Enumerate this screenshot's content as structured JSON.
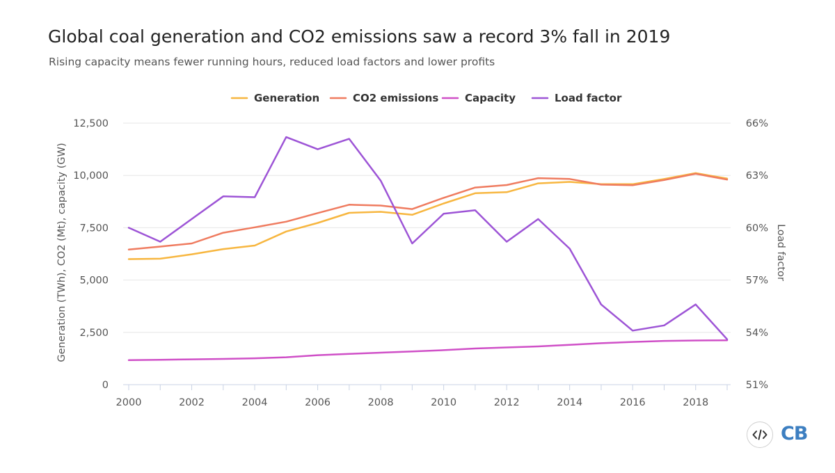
{
  "title": "Global coal generation and CO2 emissions saw a record 3% fall in 2019",
  "subtitle": "Rising capacity means fewer running hours, reduced load factors and lower profits",
  "logo_text": "CB",
  "embed_icon": "code-icon",
  "chart_data": {
    "type": "line",
    "title": "Global coal generation and CO2 emissions saw a record 3% fall in 2019",
    "subtitle": "Rising capacity means fewer running hours, reduced load factors and lower profits",
    "x": [
      2000,
      2001,
      2002,
      2003,
      2004,
      2005,
      2006,
      2007,
      2008,
      2009,
      2010,
      2011,
      2012,
      2013,
      2014,
      2015,
      2016,
      2017,
      2018,
      2019
    ],
    "x_ticks": [
      "2000",
      "2002",
      "2004",
      "2006",
      "2008",
      "2010",
      "2012",
      "2014",
      "2016",
      "2018"
    ],
    "ylabel": "Generation (TWh), CO2 (Mt), capacity (GW)",
    "ylim": [
      0,
      12500
    ],
    "y_ticks": [
      "0",
      "2,500",
      "5,000",
      "7,500",
      "10,000",
      "12,500"
    ],
    "y2label": "Load factor",
    "y2lim": [
      51,
      66
    ],
    "y2_ticks": [
      "51%",
      "54%",
      "57%",
      "60%",
      "63%",
      "66%"
    ],
    "grid": true,
    "legend_position": "top-center",
    "series": [
      {
        "name": "Generation",
        "axis": "left",
        "color": "#f7b63f",
        "values": [
          6000,
          6020,
          6230,
          6480,
          6650,
          7320,
          7730,
          8210,
          8260,
          8120,
          8660,
          9150,
          9200,
          9620,
          9690,
          9580,
          9580,
          9830,
          10110,
          9850
        ]
      },
      {
        "name": "CO2 emissions",
        "axis": "left",
        "color": "#ef7b5f",
        "values": [
          6460,
          6600,
          6750,
          7260,
          7520,
          7790,
          8200,
          8600,
          8560,
          8390,
          8930,
          9420,
          9540,
          9870,
          9830,
          9560,
          9530,
          9780,
          10080,
          9800
        ]
      },
      {
        "name": "Capacity",
        "axis": "left",
        "color": "#cf4fc7",
        "values": [
          1170,
          1190,
          1210,
          1230,
          1260,
          1310,
          1410,
          1470,
          1530,
          1590,
          1650,
          1730,
          1780,
          1830,
          1900,
          1980,
          2040,
          2090,
          2110,
          2120
        ]
      },
      {
        "name": "Load factor",
        "axis": "right",
        "color": "#9d54d6",
        "values": [
          60.0,
          59.2,
          60.5,
          61.8,
          61.75,
          65.2,
          64.5,
          65.1,
          62.7,
          59.1,
          60.8,
          61.0,
          59.2,
          60.5,
          58.8,
          55.6,
          54.1,
          54.4,
          55.6,
          53.6
        ]
      }
    ]
  }
}
